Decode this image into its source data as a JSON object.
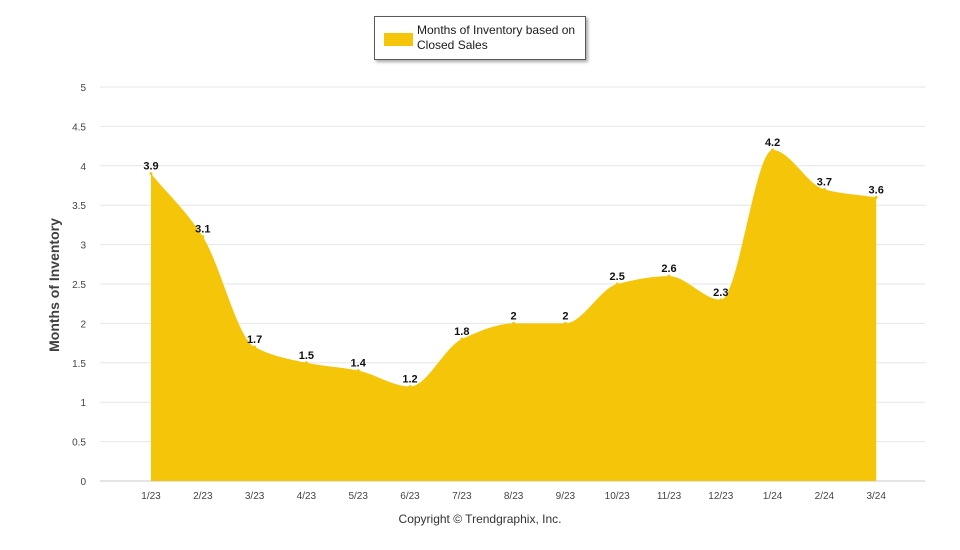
{
  "chart_data": {
    "type": "area",
    "categories": [
      "1/23",
      "2/23",
      "3/23",
      "4/23",
      "5/23",
      "6/23",
      "7/23",
      "8/23",
      "9/23",
      "10/23",
      "11/23",
      "12/23",
      "1/24",
      "2/24",
      "3/24"
    ],
    "series": [
      {
        "name": "Months of Inventory based on Closed Sales",
        "values": [
          3.9,
          3.1,
          1.7,
          1.5,
          1.4,
          1.2,
          1.8,
          2,
          2,
          2.5,
          2.6,
          2.3,
          4.2,
          3.7,
          3.6
        ],
        "labels": [
          "3.9",
          "3.1",
          "1.7",
          "1.5",
          "1.4",
          "1.2",
          "1.8",
          "2",
          "2",
          "2.5",
          "2.6",
          "2.3",
          "4.2",
          "3.7",
          "3.6"
        ],
        "color": "#f5c50a"
      }
    ],
    "ylabel": "Months of Inventory",
    "xlabel": "",
    "ylim": [
      0,
      5
    ],
    "yticks": [
      "0",
      "0.5",
      "1",
      "1.5",
      "2",
      "2.5",
      "3",
      "3.5",
      "4",
      "4.5",
      "5"
    ],
    "grid": true,
    "legend": "top-center",
    "footer": "Copyright © Trendgraphix, Inc."
  }
}
